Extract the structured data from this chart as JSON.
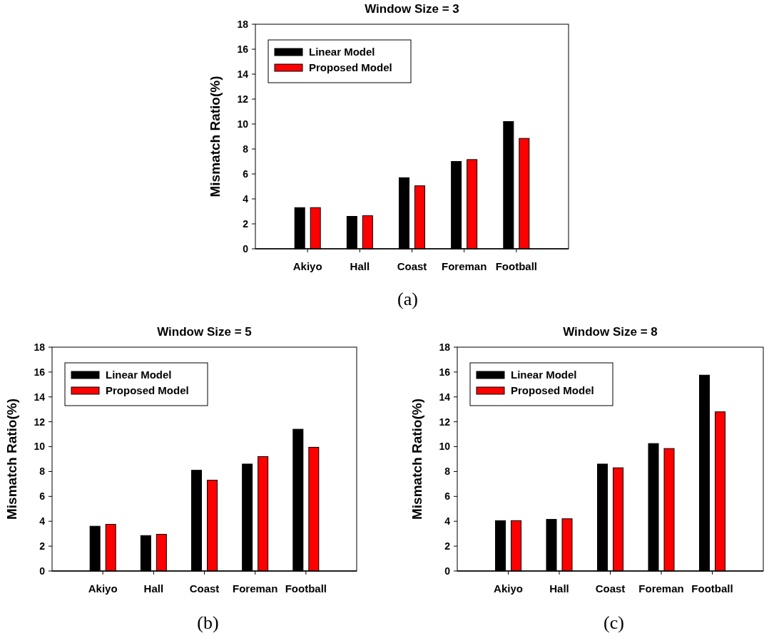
{
  "chart_data": [
    {
      "type": "bar",
      "title": "Window Size = 3",
      "ylabel": "Mismatch Ratio(%)",
      "categories": [
        "Akiyo",
        "Hall",
        "Coast",
        "Foreman",
        "Football"
      ],
      "series": [
        {
          "name": "Linear Model",
          "color": "#000000",
          "values": [
            3.3,
            2.6,
            5.7,
            7.0,
            10.2
          ]
        },
        {
          "name": "Proposed Model",
          "color": "#ff0000",
          "values": [
            3.3,
            2.65,
            5.05,
            7.15,
            8.85
          ]
        }
      ],
      "ylim": [
        0,
        18
      ],
      "yticks": [
        0,
        2,
        4,
        6,
        8,
        10,
        12,
        14,
        16,
        18
      ],
      "legend": "top left",
      "annotations": [
        "(a)"
      ]
    },
    {
      "type": "bar",
      "title": "Window Size = 5",
      "ylabel": "Mismatch Ratio(%)",
      "categories": [
        "Akiyo",
        "Hall",
        "Coast",
        "Foreman",
        "Football"
      ],
      "series": [
        {
          "name": "Linear Model",
          "color": "#000000",
          "values": [
            3.6,
            2.85,
            8.1,
            8.6,
            11.4
          ]
        },
        {
          "name": "Proposed Model",
          "color": "#ff0000",
          "values": [
            3.75,
            2.95,
            7.3,
            9.2,
            9.95
          ]
        }
      ],
      "ylim": [
        0,
        18
      ],
      "yticks": [
        0,
        2,
        4,
        6,
        8,
        10,
        12,
        14,
        16,
        18
      ],
      "legend": "top left",
      "annotations": [
        "(b)"
      ]
    },
    {
      "type": "bar",
      "title": "Window Size = 8",
      "ylabel": "Mismatch Ratio(%)",
      "categories": [
        "Akiyo",
        "Hall",
        "Coast",
        "Foreman",
        "Football"
      ],
      "series": [
        {
          "name": "Linear Model",
          "color": "#000000",
          "values": [
            4.05,
            4.15,
            8.6,
            10.25,
            15.75
          ]
        },
        {
          "name": "Proposed Model",
          "color": "#ff0000",
          "values": [
            4.05,
            4.2,
            8.3,
            9.85,
            12.8
          ]
        }
      ],
      "ylim": [
        0,
        18
      ],
      "yticks": [
        0,
        2,
        4,
        6,
        8,
        10,
        12,
        14,
        16,
        18
      ],
      "legend": "top left",
      "annotations": [
        "(c)"
      ]
    }
  ]
}
